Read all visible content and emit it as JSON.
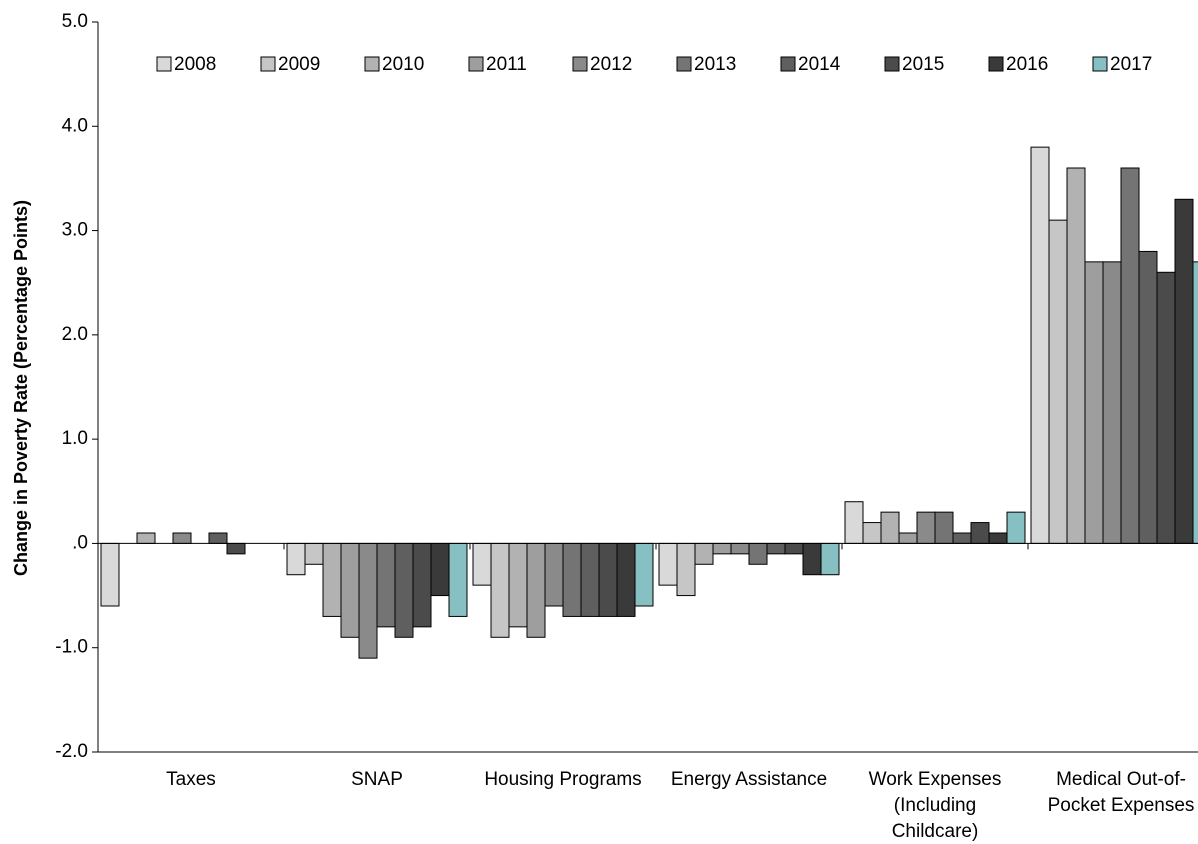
{
  "chart_data": {
    "type": "bar",
    "y_label": "Change in Poverty Rate (Percentage Points)",
    "categories": [
      "Taxes",
      "SNAP",
      "Housing Programs",
      "Energy Assistance",
      "Work Expenses (Including Childcare)",
      "Medical Out-of-Pocket Expenses"
    ],
    "series": [
      {
        "name": "2008",
        "color": "#d9d9d9",
        "values": [
          -0.6,
          -0.3,
          -0.4,
          -0.4,
          0.4,
          3.8
        ]
      },
      {
        "name": "2009",
        "color": "#c6c6c6",
        "values": [
          0,
          -0.2,
          -0.9,
          -0.5,
          0.2,
          3.1
        ]
      },
      {
        "name": "2010",
        "color": "#b2b2b2",
        "values": [
          0.1,
          -0.7,
          -0.8,
          -0.2,
          0.3,
          3.6
        ]
      },
      {
        "name": "2011",
        "color": "#9e9e9e",
        "values": [
          0,
          -0.9,
          -0.9,
          -0.1,
          0.1,
          2.7
        ]
      },
      {
        "name": "2012",
        "color": "#8a8a8a",
        "values": [
          0.1,
          -1.1,
          -0.6,
          -0.1,
          0.3,
          2.7
        ]
      },
      {
        "name": "2013",
        "color": "#747474",
        "values": [
          0,
          -0.8,
          -0.7,
          -0.2,
          0.3,
          3.6
        ]
      },
      {
        "name": "2014",
        "color": "#5f5f5f",
        "values": [
          0.1,
          -0.9,
          -0.7,
          -0.1,
          0.1,
          2.8
        ]
      },
      {
        "name": "2015",
        "color": "#4b4b4b",
        "values": [
          -0.1,
          -0.8,
          -0.7,
          -0.1,
          0.2,
          2.6
        ]
      },
      {
        "name": "2016",
        "color": "#3a3a3a",
        "values": [
          0,
          -0.5,
          -0.7,
          -0.3,
          0.1,
          3.3
        ]
      },
      {
        "name": "2017",
        "color": "#86c0c2",
        "values": [
          0,
          -0.7,
          -0.6,
          -0.3,
          0.3,
          2.7
        ]
      }
    ],
    "ylim": [
      -2,
      5
    ],
    "yticks": [
      {
        "value": 5,
        "label": "5.0"
      },
      {
        "value": 4,
        "label": "4.0"
      },
      {
        "value": 3,
        "label": "3.0"
      },
      {
        "value": 2,
        "label": "2.0"
      },
      {
        "value": 1,
        "label": "1.0"
      },
      {
        "value": 0,
        "label": ".0"
      },
      {
        "value": -1,
        "label": "-1.0"
      },
      {
        "value": -2,
        "label": "-2.0"
      }
    ],
    "grid": false,
    "legend": "top"
  }
}
